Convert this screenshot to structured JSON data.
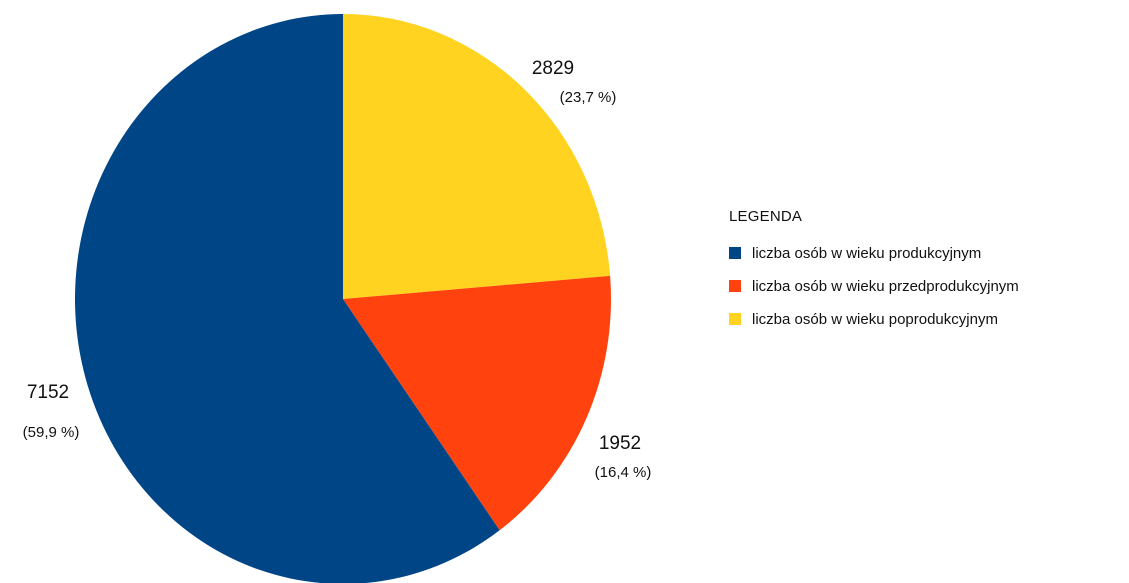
{
  "chart_data": {
    "type": "pie",
    "title": "",
    "legend_title": "LEGENDA",
    "legend_position": "right",
    "slices": [
      {
        "name": "liczba osób w wieku produkcyjnym",
        "value": 7152,
        "value_label": "7152",
        "percent_label": "(59,9 %)",
        "color": "#004586"
      },
      {
        "name": "liczba osób w wieku przedprodukcyjnym",
        "value": 1952,
        "value_label": "1952",
        "percent_label": "(16,4 %)",
        "color": "#FF420E"
      },
      {
        "name": "liczba osób w wieku poprodukcyjnym",
        "value": 2829,
        "value_label": "2829",
        "percent_label": "(23,7 %)",
        "color": "#FFD320"
      }
    ]
  }
}
